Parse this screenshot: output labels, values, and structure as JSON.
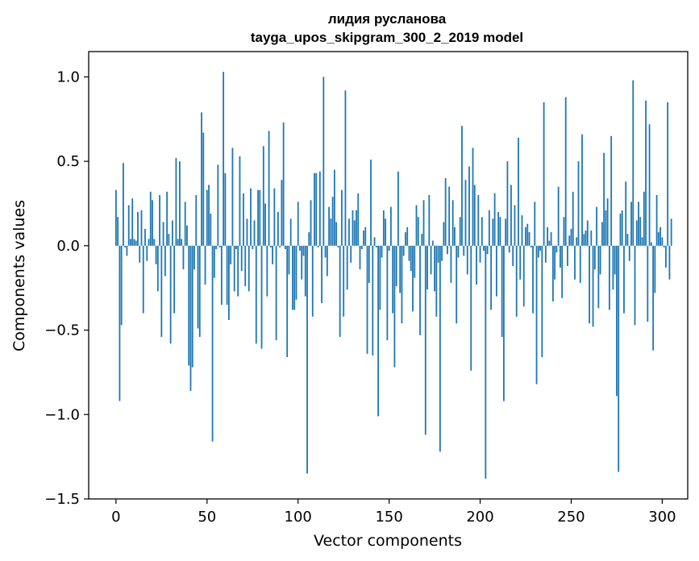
{
  "chart_data": {
    "type": "bar",
    "title_line1": "лидия русланова",
    "title_line2": "tayga_upos_skipgram_300_2_2019 model",
    "xlabel": "Vector components",
    "ylabel": "Components values",
    "xlim": [
      -15,
      314
    ],
    "ylim": [
      -1.5,
      1.15
    ],
    "x_ticks": [
      0,
      50,
      100,
      150,
      200,
      250,
      300
    ],
    "x_tick_labels": [
      "0",
      "50",
      "100",
      "150",
      "200",
      "250",
      "300"
    ],
    "y_ticks": [
      -1.5,
      -1.0,
      -0.5,
      0.0,
      0.5,
      1.0
    ],
    "y_tick_labels": [
      "−1.5",
      "−1.0",
      "−0.5",
      "0.0",
      "0.5",
      "1.0"
    ],
    "bar_color": "#1f77b4",
    "grid": false,
    "values": [
      0.33,
      0.17,
      -0.92,
      -0.47,
      0.49,
      -0.01,
      -0.06,
      0.24,
      0.04,
      0.28,
      0.04,
      0.03,
      0.2,
      -0.1,
      0.21,
      -0.4,
      0.1,
      -0.09,
      0.04,
      0.32,
      0.27,
      0.04,
      -0.11,
      -0.27,
      0.3,
      -0.54,
      0.14,
      -0.18,
      0.32,
      0.07,
      -0.58,
      0.15,
      -0.4,
      0.52,
      0.04,
      0.5,
      0.04,
      -0.14,
      0.26,
      0.12,
      -0.71,
      -0.86,
      -0.72,
      -0.14,
      0.3,
      -0.49,
      -0.54,
      0.79,
      0.67,
      -0.23,
      0.33,
      0.36,
      0.19,
      -1.16,
      -0.19,
      -0.02,
      0.48,
      -0.01,
      -0.35,
      1.03,
      0.43,
      -0.35,
      -0.44,
      -0.11,
      0.58,
      -0.27,
      -0.02,
      -0.3,
      0.53,
      -0.15,
      0.31,
      -0.24,
      0.16,
      -0.27,
      0.34,
      -0.02,
      0.15,
      -0.58,
      0.33,
      0.33,
      -0.61,
      0.59,
      0.25,
      -0.3,
      0.68,
      -0.01,
      -0.11,
      0.34,
      -0.56,
      0.2,
      -0.01,
      0.39,
      0.73,
      -0.02,
      -0.66,
      -0.17,
      0.16,
      -0.38,
      -0.38,
      -0.32,
      0.26,
      -0.03,
      -0.2,
      -0.06,
      -0.3,
      -1.35,
      0.08,
      0.27,
      -0.42,
      0.43,
      0.43,
      -0.01,
      0.44,
      -0.34,
      1.0,
      -0.07,
      -0.18,
      0.23,
      0.16,
      0.29,
      0.45,
      0.14,
      -0.01,
      -0.54,
      0.33,
      -0.42,
      0.92,
      -0.26,
      0.16,
      -0.1,
      0.21,
      0.15,
      0.21,
      0.31,
      -0.14,
      -0.02,
      0.09,
      0.11,
      -0.64,
      -0.22,
      0.51,
      -0.65,
      0.05,
      -0.01,
      -1.01,
      -0.38,
      -0.07,
      0.21,
      0.16,
      -0.56,
      -0.03,
      0.23,
      -0.4,
      -0.72,
      -0.24,
      0.44,
      -0.28,
      -0.46,
      -0.06,
      0.08,
      0.11,
      -0.09,
      -0.15,
      -0.39,
      -0.19,
      0.24,
      0.17,
      -0.53,
      0.07,
      0.27,
      -1.12,
      -0.26,
      0.3,
      -0.17,
      0.03,
      -0.27,
      -0.42,
      -0.1,
      -1.22,
      -0.09,
      0.14,
      0.4,
      -0.05,
      0.35,
      -0.22,
      0.27,
      0.11,
      -0.46,
      -0.07,
      0.17,
      0.71,
      -0.06,
      0.39,
      -0.17,
      0.47,
      -0.74,
      0.58,
      0.36,
      -0.23,
      0.3,
      -0.1,
      0.17,
      -0.03,
      -1.38,
      -0.05,
      0.21,
      -0.38,
      0.16,
      0.31,
      -0.3,
      0.2,
      0.17,
      -0.54,
      -0.92,
      0.16,
      0.5,
      -0.04,
      0.36,
      -0.12,
      0.24,
      -0.42,
      0.64,
      -0.2,
      0.18,
      -0.36,
      0.11,
      0.13,
      0.08,
      -0.01,
      -0.4,
      0.26,
      -0.82,
      -0.07,
      -0.03,
      -0.66,
      0.85,
      -0.1,
      0.11,
      0.03,
      0.08,
      -0.33,
      -0.2,
      -0.04,
      0.35,
      -0.13,
      -0.31,
      0.17,
      0.88,
      -0.12,
      0.06,
      0.1,
      0.32,
      -0.2,
      0.05,
      0.5,
      -0.22,
      0.66,
      0.07,
      0.09,
      0.15,
      -0.46,
      0.09,
      -0.48,
      -0.14,
      0.23,
      -0.37,
      -0.17,
      0.14,
      0.55,
      0.21,
      0.28,
      -0.38,
      0.65,
      -0.26,
      -0.17,
      -0.89,
      -1.34,
      0.19,
      0.21,
      -0.4,
      0.38,
      0.07,
      -0.09,
      0.26,
      0.98,
      -0.47,
      0.15,
      0.26,
      0.17,
      0.05,
      0.32,
      0.86,
      -0.45,
      0.72,
      0.02,
      -0.62,
      -0.28,
      0.3,
      0.08,
      0.11,
      0.05,
      -0.01,
      -0.13,
      0.85,
      -0.2,
      0.16
    ]
  }
}
